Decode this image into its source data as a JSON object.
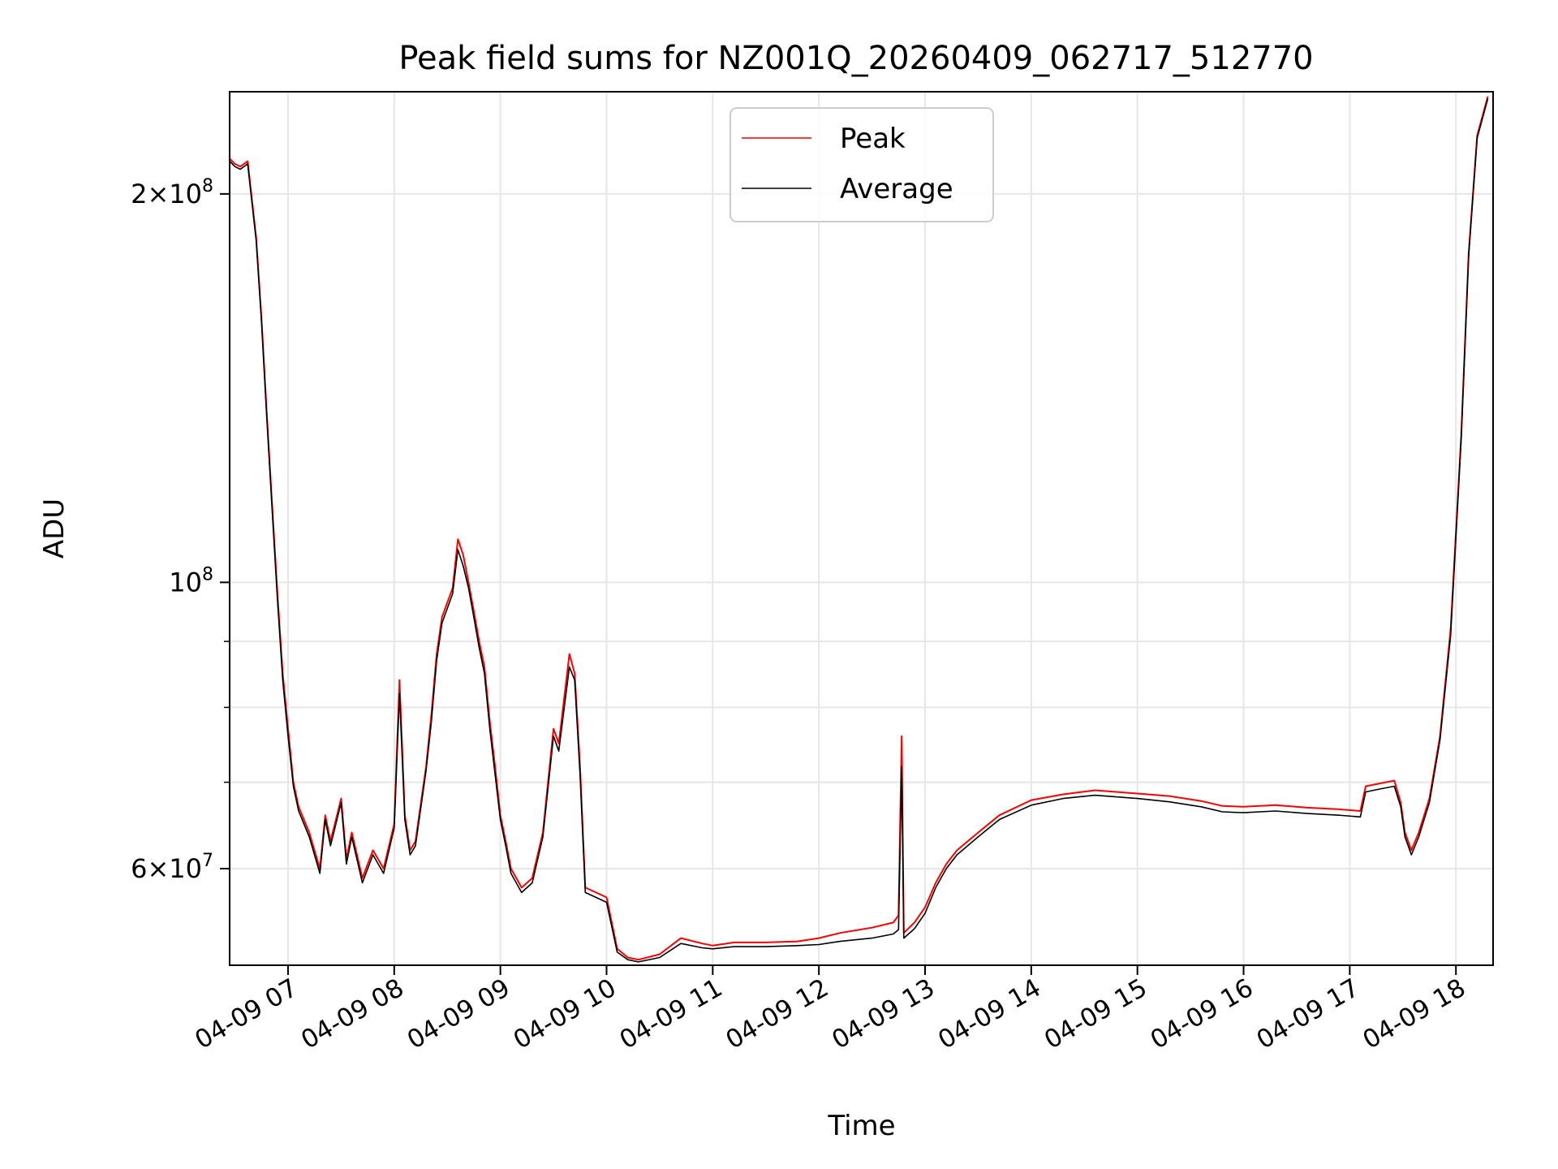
{
  "chart_data": {
    "type": "line",
    "title": "Peak field sums for NZ001Q_20260409_062717_512770",
    "xlabel": "Time",
    "ylabel": "ADU",
    "yscale": "log",
    "xlim": [
      6.45,
      18.35
    ],
    "ylim": [
      50500000,
      240000000
    ],
    "grid": true,
    "legend_position": "top-center",
    "xticks": [
      {
        "v": 7,
        "label": "04-09 07"
      },
      {
        "v": 8,
        "label": "04-09 08"
      },
      {
        "v": 9,
        "label": "04-09 09"
      },
      {
        "v": 10,
        "label": "04-09 10"
      },
      {
        "v": 11,
        "label": "04-09 11"
      },
      {
        "v": 12,
        "label": "04-09 12"
      },
      {
        "v": 13,
        "label": "04-09 13"
      },
      {
        "v": 14,
        "label": "04-09 14"
      },
      {
        "v": 15,
        "label": "04-09 15"
      },
      {
        "v": 16,
        "label": "04-09 16"
      },
      {
        "v": 17,
        "label": "04-09 17"
      },
      {
        "v": 18,
        "label": "04-09 18"
      }
    ],
    "yticks_major": [
      {
        "v": 60000000,
        "base": "6×10",
        "exp": "7"
      },
      {
        "v": 100000000,
        "base": "10",
        "exp": "8"
      },
      {
        "v": 200000000,
        "base": "2×10",
        "exp": "8"
      }
    ],
    "yticks_minor": [
      70000000,
      80000000,
      90000000
    ],
    "series": [
      {
        "name": "Peak",
        "color": "#ff0000",
        "x": [
          6.45,
          6.5,
          6.55,
          6.62,
          6.7,
          6.75,
          6.8,
          6.85,
          6.9,
          6.95,
          7.0,
          7.05,
          7.1,
          7.2,
          7.3,
          7.35,
          7.4,
          7.5,
          7.55,
          7.6,
          7.7,
          7.8,
          7.9,
          8.0,
          8.05,
          8.1,
          8.15,
          8.2,
          8.3,
          8.35,
          8.4,
          8.45,
          8.55,
          8.6,
          8.65,
          8.7,
          8.75,
          8.8,
          8.85,
          8.9,
          8.95,
          9.0,
          9.05,
          9.1,
          9.2,
          9.3,
          9.4,
          9.5,
          9.55,
          9.65,
          9.7,
          9.75,
          9.8,
          9.9,
          10.0,
          10.1,
          10.2,
          10.3,
          10.5,
          10.7,
          10.9,
          11.0,
          11.2,
          11.5,
          11.8,
          12.0,
          12.2,
          12.5,
          12.7,
          12.75,
          12.78,
          12.8,
          12.9,
          13.0,
          13.1,
          13.2,
          13.3,
          13.5,
          13.7,
          14.0,
          14.3,
          14.6,
          14.8,
          15.0,
          15.3,
          15.6,
          15.8,
          16.0,
          16.3,
          16.6,
          16.9,
          17.1,
          17.15,
          17.3,
          17.42,
          17.48,
          17.52,
          17.58,
          17.65,
          17.75,
          17.85,
          17.95,
          18.05,
          18.12,
          18.2,
          18.3
        ],
        "y": [
          213000000,
          211000000,
          210000000,
          212000000,
          185000000,
          160000000,
          135000000,
          115000000,
          98000000,
          85000000,
          77000000,
          70000000,
          67000000,
          64000000,
          60000000,
          66000000,
          63000000,
          68000000,
          61000000,
          64000000,
          59000000,
          62000000,
          60000000,
          65000000,
          84000000,
          66000000,
          62000000,
          63000000,
          72000000,
          79000000,
          88000000,
          94000000,
          99000000,
          108000000,
          105000000,
          100000000,
          95000000,
          90000000,
          86000000,
          78000000,
          72000000,
          66000000,
          63000000,
          60000000,
          58000000,
          59000000,
          64000000,
          77000000,
          75000000,
          88000000,
          85000000,
          72000000,
          58000000,
          57500000,
          57000000,
          52000000,
          51200000,
          51000000,
          51500000,
          53000000,
          52500000,
          52300000,
          52600000,
          52600000,
          52700000,
          53000000,
          53500000,
          54000000,
          54500000,
          55200000,
          76000000,
          53500000,
          54500000,
          56000000,
          58500000,
          60500000,
          62000000,
          64000000,
          66000000,
          67800000,
          68500000,
          69000000,
          68800000,
          68600000,
          68300000,
          67700000,
          67100000,
          67000000,
          67200000,
          66900000,
          66700000,
          66500000,
          69500000,
          69900000,
          70200000,
          67500000,
          64000000,
          62000000,
          64000000,
          68000000,
          76000000,
          92000000,
          130000000,
          180000000,
          222000000,
          238000000
        ]
      },
      {
        "name": "Average",
        "color": "#000000",
        "x": [
          6.45,
          6.5,
          6.55,
          6.62,
          6.7,
          6.75,
          6.8,
          6.85,
          6.9,
          6.95,
          7.0,
          7.05,
          7.1,
          7.2,
          7.3,
          7.35,
          7.4,
          7.5,
          7.55,
          7.6,
          7.7,
          7.8,
          7.9,
          8.0,
          8.05,
          8.1,
          8.15,
          8.2,
          8.3,
          8.35,
          8.4,
          8.45,
          8.55,
          8.6,
          8.65,
          8.7,
          8.75,
          8.8,
          8.85,
          8.9,
          8.95,
          9.0,
          9.05,
          9.1,
          9.2,
          9.3,
          9.4,
          9.5,
          9.55,
          9.65,
          9.7,
          9.75,
          9.8,
          9.9,
          10.0,
          10.1,
          10.2,
          10.3,
          10.5,
          10.7,
          10.9,
          11.0,
          11.2,
          11.5,
          11.8,
          12.0,
          12.2,
          12.5,
          12.7,
          12.75,
          12.78,
          12.8,
          12.9,
          13.0,
          13.1,
          13.2,
          13.3,
          13.5,
          13.7,
          14.0,
          14.3,
          14.6,
          14.8,
          15.0,
          15.3,
          15.6,
          15.8,
          16.0,
          16.3,
          16.6,
          16.9,
          17.1,
          17.15,
          17.3,
          17.42,
          17.48,
          17.52,
          17.58,
          17.65,
          17.75,
          17.85,
          17.95,
          18.05,
          18.12,
          18.2,
          18.3
        ],
        "y": [
          212000000,
          210000000,
          209000000,
          211000000,
          184000000,
          159000000,
          134000000,
          114000000,
          97000000,
          84000000,
          76000000,
          69500000,
          66500000,
          63500000,
          59500000,
          65500000,
          62500000,
          67500000,
          60500000,
          63500000,
          58500000,
          61500000,
          59500000,
          64500000,
          82000000,
          65500000,
          61500000,
          62500000,
          71500000,
          78000000,
          87000000,
          93000000,
          98000000,
          106000000,
          103000000,
          99000000,
          94000000,
          89000000,
          85000000,
          77000000,
          71000000,
          65500000,
          62500000,
          59500000,
          57500000,
          58500000,
          63500000,
          76000000,
          74000000,
          86000000,
          84000000,
          71000000,
          57500000,
          57000000,
          56500000,
          51700000,
          51000000,
          50800000,
          51200000,
          52500000,
          52100000,
          52000000,
          52200000,
          52200000,
          52300000,
          52400000,
          52700000,
          53000000,
          53400000,
          53800000,
          72000000,
          53000000,
          53900000,
          55400000,
          58000000,
          60000000,
          61500000,
          63500000,
          65500000,
          67200000,
          68000000,
          68400000,
          68200000,
          68000000,
          67600000,
          67000000,
          66400000,
          66300000,
          66500000,
          66200000,
          66000000,
          65800000,
          68800000,
          69200000,
          69500000,
          67000000,
          63500000,
          61500000,
          63500000,
          67500000,
          75500000,
          91000000,
          129000000,
          179000000,
          221000000,
          237000000
        ]
      }
    ]
  }
}
